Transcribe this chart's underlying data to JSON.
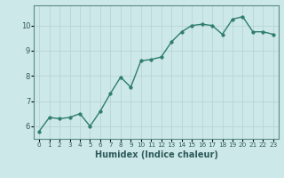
{
  "x": [
    0,
    1,
    2,
    3,
    4,
    5,
    6,
    7,
    8,
    9,
    10,
    11,
    12,
    13,
    14,
    15,
    16,
    17,
    18,
    19,
    20,
    21,
    22,
    23
  ],
  "y": [
    5.8,
    6.35,
    6.3,
    6.35,
    6.5,
    6.0,
    6.6,
    7.3,
    7.95,
    7.55,
    8.6,
    8.65,
    8.75,
    9.35,
    9.75,
    10.0,
    10.05,
    10.0,
    9.65,
    10.25,
    10.35,
    9.75,
    9.75,
    9.65
  ],
  "line_color": "#2e7d6e",
  "marker_color": "#2e7d6e",
  "bg_color": "#cde8e8",
  "grid_color": "#b8d4d4",
  "xlabel": "Humidex (Indice chaleur)",
  "ylim": [
    5.5,
    10.8
  ],
  "xlim": [
    -0.5,
    23.5
  ],
  "yticks": [
    6,
    7,
    8,
    9,
    10
  ],
  "xticks": [
    0,
    1,
    2,
    3,
    4,
    5,
    6,
    7,
    8,
    9,
    10,
    11,
    12,
    13,
    14,
    15,
    16,
    17,
    18,
    19,
    20,
    21,
    22,
    23
  ],
  "xlabel_fontsize": 7,
  "tick_fontsize": 6,
  "linewidth": 1.0,
  "markersize": 2.5
}
